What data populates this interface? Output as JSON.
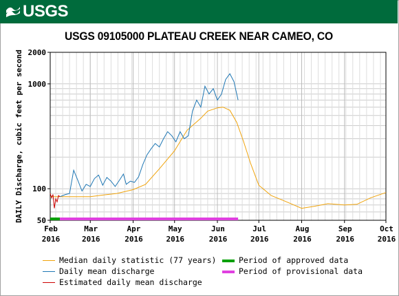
{
  "header": {
    "logo_text": "USGS",
    "logo_icon": "usgs-wave-icon",
    "bar_color": "#006b3c"
  },
  "chart_data": {
    "type": "line",
    "title": "USGS 09105000 PLATEAU CREEK NEAR CAMEO, CO",
    "ylabel": "DAILY Discharge, cubic feet per second",
    "xlabel": "",
    "yscale": "log",
    "ylim": [
      50,
      2000
    ],
    "xlim": [
      "2016-02-01",
      "2016-10-01"
    ],
    "grid": true,
    "y_ticks": [
      {
        "value": 50,
        "label": "50"
      },
      {
        "value": 100,
        "label": "100"
      },
      {
        "value": 1000,
        "label": "1000"
      },
      {
        "value": 2000,
        "label": "2000"
      }
    ],
    "x_ticks": [
      {
        "date": "2016-02-01",
        "month": "Feb",
        "year": "2016"
      },
      {
        "date": "2016-03-01",
        "month": "Mar",
        "year": "2016"
      },
      {
        "date": "2016-04-01",
        "month": "Apr",
        "year": "2016"
      },
      {
        "date": "2016-05-01",
        "month": "May",
        "year": "2016"
      },
      {
        "date": "2016-06-01",
        "month": "Jun",
        "year": "2016"
      },
      {
        "date": "2016-07-01",
        "month": "Jul",
        "year": "2016"
      },
      {
        "date": "2016-08-01",
        "month": "Aug",
        "year": "2016"
      },
      {
        "date": "2016-09-01",
        "month": "Sep",
        "year": "2016"
      },
      {
        "date": "2016-10-01",
        "month": "Oct",
        "year": "2016"
      }
    ],
    "series": [
      {
        "name": "Median daily statistic (77 years)",
        "color": "#f0a30a",
        "points": [
          [
            "2016-02-01",
            84
          ],
          [
            "2016-02-15",
            84
          ],
          [
            "2016-03-01",
            84
          ],
          [
            "2016-03-10",
            87
          ],
          [
            "2016-03-20",
            90
          ],
          [
            "2016-04-01",
            98
          ],
          [
            "2016-04-10",
            110
          ],
          [
            "2016-04-20",
            155
          ],
          [
            "2016-05-01",
            230
          ],
          [
            "2016-05-10",
            360
          ],
          [
            "2016-05-20",
            470
          ],
          [
            "2016-05-25",
            550
          ],
          [
            "2016-06-01",
            590
          ],
          [
            "2016-06-05",
            600
          ],
          [
            "2016-06-10",
            560
          ],
          [
            "2016-06-15",
            430
          ],
          [
            "2016-06-20",
            280
          ],
          [
            "2016-06-25",
            175
          ],
          [
            "2016-07-01",
            108
          ],
          [
            "2016-07-10",
            86
          ],
          [
            "2016-07-20",
            76
          ],
          [
            "2016-08-01",
            65
          ],
          [
            "2016-08-10",
            68
          ],
          [
            "2016-08-20",
            72
          ],
          [
            "2016-09-01",
            70
          ],
          [
            "2016-09-10",
            71
          ],
          [
            "2016-09-20",
            82
          ],
          [
            "2016-10-01",
            92
          ]
        ]
      },
      {
        "name": "Daily mean discharge",
        "color": "#1f77b4",
        "points": [
          [
            "2016-02-08",
            84
          ],
          [
            "2016-02-12",
            88
          ],
          [
            "2016-02-15",
            90
          ],
          [
            "2016-02-18",
            150
          ],
          [
            "2016-02-21",
            120
          ],
          [
            "2016-02-24",
            95
          ],
          [
            "2016-02-27",
            110
          ],
          [
            "2016-03-01",
            105
          ],
          [
            "2016-03-04",
            125
          ],
          [
            "2016-03-07",
            135
          ],
          [
            "2016-03-10",
            108
          ],
          [
            "2016-03-13",
            128
          ],
          [
            "2016-03-16",
            118
          ],
          [
            "2016-03-19",
            105
          ],
          [
            "2016-03-22",
            120
          ],
          [
            "2016-03-25",
            138
          ],
          [
            "2016-03-27",
            110
          ],
          [
            "2016-03-30",
            118
          ],
          [
            "2016-04-02",
            115
          ],
          [
            "2016-04-05",
            130
          ],
          [
            "2016-04-08",
            170
          ],
          [
            "2016-04-11",
            210
          ],
          [
            "2016-04-14",
            240
          ],
          [
            "2016-04-17",
            270
          ],
          [
            "2016-04-20",
            250
          ],
          [
            "2016-04-23",
            300
          ],
          [
            "2016-04-26",
            350
          ],
          [
            "2016-04-29",
            320
          ],
          [
            "2016-05-02",
            280
          ],
          [
            "2016-05-05",
            350
          ],
          [
            "2016-05-08",
            300
          ],
          [
            "2016-05-11",
            320
          ],
          [
            "2016-05-14",
            550
          ],
          [
            "2016-05-17",
            700
          ],
          [
            "2016-05-20",
            600
          ],
          [
            "2016-05-23",
            950
          ],
          [
            "2016-05-26",
            800
          ],
          [
            "2016-05-29",
            900
          ],
          [
            "2016-06-01",
            700
          ],
          [
            "2016-06-04",
            800
          ],
          [
            "2016-06-07",
            1100
          ],
          [
            "2016-06-10",
            1250
          ],
          [
            "2016-06-13",
            1050
          ],
          [
            "2016-06-16",
            700
          ]
        ]
      },
      {
        "name": "Estimated daily mean discharge",
        "color": "#cc0000",
        "points": [
          [
            "2016-02-01",
            90
          ],
          [
            "2016-02-02",
            82
          ],
          [
            "2016-02-03",
            88
          ],
          [
            "2016-02-04",
            65
          ],
          [
            "2016-02-05",
            80
          ],
          [
            "2016-02-06",
            75
          ],
          [
            "2016-02-07",
            86
          ],
          [
            "2016-02-08",
            84
          ]
        ]
      }
    ],
    "periods": [
      {
        "name": "Period of approved data",
        "color": "#00a000",
        "start": "2016-02-01",
        "end": "2016-02-08"
      },
      {
        "name": "Period of provisional data",
        "color": "#e040e0",
        "start": "2016-02-08",
        "end": "2016-06-16"
      }
    ]
  }
}
